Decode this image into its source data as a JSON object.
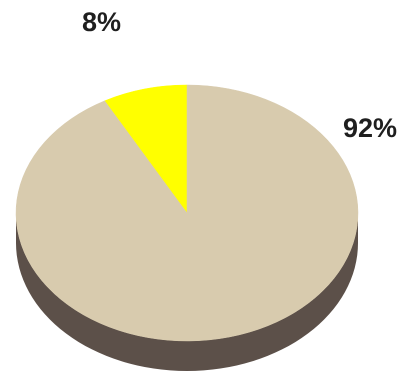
{
  "chart_data": {
    "type": "pie",
    "title": "",
    "slices": [
      {
        "label": "8%",
        "value": 8,
        "color": "#FFFF00"
      },
      {
        "label": "92%",
        "value": 92,
        "color": "#D8CBAE"
      }
    ],
    "start_angle_deg": -90,
    "direction": "counterclockwise-first-slice",
    "side_color": "#5c5049",
    "legend": "none"
  }
}
